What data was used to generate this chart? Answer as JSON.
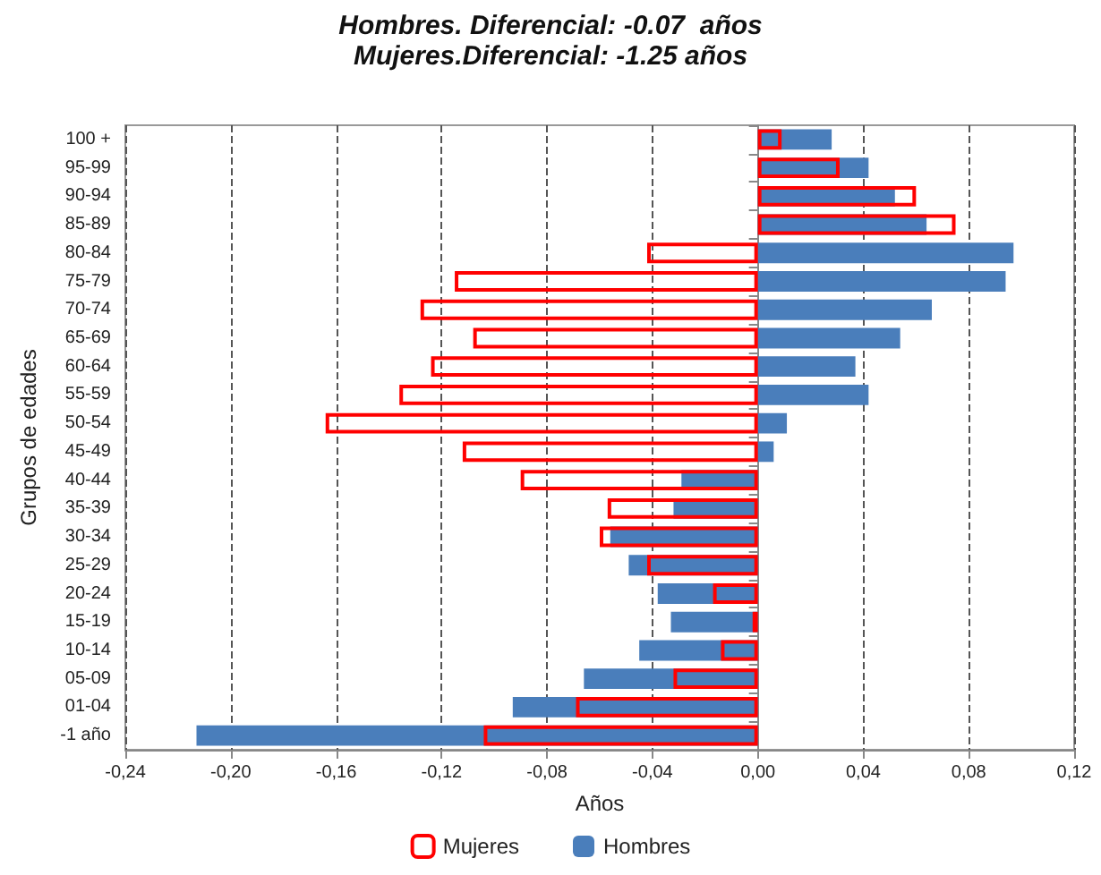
{
  "chart_data": {
    "type": "bar",
    "orientation": "horizontal",
    "title": "Hombres. Diferencial: -0.07  años",
    "subtitle": "Mujeres.Diferencial: -1.25 años",
    "xlabel": "Años",
    "ylabel": "Grupos de edades",
    "categories": [
      "100 +",
      "95-99",
      "90-94",
      "85-89",
      "80-84",
      "75-79",
      "70-74",
      "65-69",
      "60-64",
      "55-59",
      "50-54",
      "45-49",
      "40-44",
      "35-39",
      "30-34",
      "25-29",
      "20-24",
      "15-19",
      "10-14",
      "05-09",
      "01-04",
      "-1 año"
    ],
    "series": [
      {
        "name": "Mujeres",
        "color": "#ff0000",
        "values": [
          0.009,
          0.031,
          0.06,
          0.075,
          -0.042,
          -0.115,
          -0.128,
          -0.108,
          -0.124,
          -0.136,
          -0.164,
          -0.112,
          -0.09,
          -0.057,
          -0.06,
          -0.042,
          -0.017,
          -0.002,
          -0.014,
          -0.032,
          -0.069,
          -0.104
        ]
      },
      {
        "name": "Hombres",
        "color": "#4a7ebb",
        "values": [
          0.028,
          0.042,
          0.052,
          0.064,
          0.097,
          0.094,
          0.066,
          0.054,
          0.037,
          0.042,
          0.011,
          0.006,
          -0.029,
          -0.032,
          -0.056,
          -0.049,
          -0.038,
          -0.033,
          -0.045,
          -0.066,
          -0.093,
          -0.213
        ]
      }
    ],
    "xlim": [
      -0.24,
      0.12
    ],
    "xticks": [
      {
        "value": -0.24,
        "label": "-0,24"
      },
      {
        "value": -0.2,
        "label": "-0,20"
      },
      {
        "value": -0.16,
        "label": "-0,16"
      },
      {
        "value": -0.12,
        "label": "-0,12"
      },
      {
        "value": -0.08,
        "label": "-0,08"
      },
      {
        "value": -0.04,
        "label": "-0,04"
      },
      {
        "value": 0,
        "label": "0,00"
      },
      {
        "value": 0.04,
        "label": "0,04"
      },
      {
        "value": 0.08,
        "label": "0,08"
      },
      {
        "value": 0.12,
        "label": "0,12"
      }
    ],
    "grid": "x",
    "legend": "bottom"
  }
}
